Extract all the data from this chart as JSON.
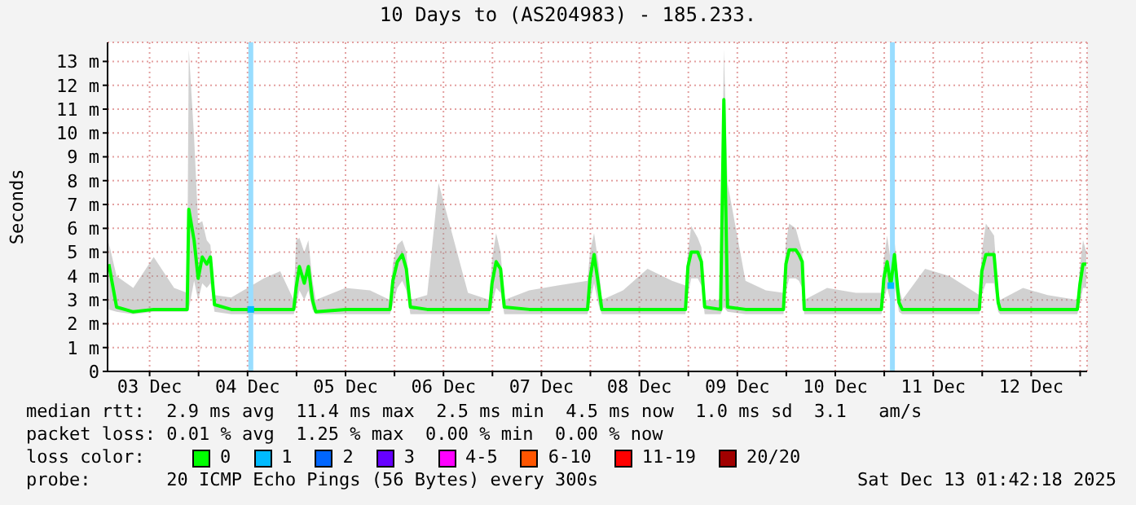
{
  "chart_data": {
    "type": "line",
    "title": "10 Days to (AS204983) - 185.233.",
    "ylabel": "Seconds",
    "legend_title": "loss color:",
    "legend": "bottom",
    "grid": true,
    "xlim": [
      "2025-12-03T01:42",
      "2025-12-13T01:42"
    ],
    "xticks": [
      {
        "value": "2025-12-03T12:00",
        "label": "03 Dec"
      },
      {
        "value": "2025-12-04T00:00",
        "label": null
      },
      {
        "value": "2025-12-04T12:00",
        "label": "04 Dec"
      },
      {
        "value": "2025-12-05T00:00",
        "label": null
      },
      {
        "value": "2025-12-05T12:00",
        "label": "05 Dec"
      },
      {
        "value": "2025-12-06T00:00",
        "label": null
      },
      {
        "value": "2025-12-06T12:00",
        "label": "06 Dec"
      },
      {
        "value": "2025-12-07T00:00",
        "label": null
      },
      {
        "value": "2025-12-07T12:00",
        "label": "07 Dec"
      },
      {
        "value": "2025-12-08T00:00",
        "label": null
      },
      {
        "value": "2025-12-08T12:00",
        "label": "08 Dec"
      },
      {
        "value": "2025-12-09T00:00",
        "label": null
      },
      {
        "value": "2025-12-09T12:00",
        "label": "09 Dec"
      },
      {
        "value": "2025-12-10T00:00",
        "label": null
      },
      {
        "value": "2025-12-10T12:00",
        "label": "10 Dec"
      },
      {
        "value": "2025-12-11T00:00",
        "label": null
      },
      {
        "value": "2025-12-11T12:00",
        "label": "11 Dec"
      },
      {
        "value": "2025-12-12T00:00",
        "label": null
      },
      {
        "value": "2025-12-12T12:00",
        "label": "12 Dec"
      },
      {
        "value": "2025-12-13T00:00",
        "label": null
      }
    ],
    "ylim": [
      0,
      13.8
    ],
    "yticks": [
      0,
      {
        "value": 1,
        "label": "1 m"
      },
      {
        "value": 2,
        "label": "2 m"
      },
      {
        "value": 3,
        "label": "3 m"
      },
      {
        "value": 4,
        "label": "4 m"
      },
      {
        "value": 5,
        "label": "5 m"
      },
      {
        "value": 6,
        "label": "6 m"
      },
      {
        "value": 7,
        "label": "7 m"
      },
      {
        "value": 8,
        "label": "8 m"
      },
      {
        "value": 9,
        "label": "9 m"
      },
      {
        "value": 10,
        "label": "10 m"
      },
      {
        "value": 11,
        "label": "11 m"
      },
      {
        "value": 12,
        "label": "12 m"
      },
      {
        "value": 13,
        "label": "13 m"
      }
    ],
    "ref_lines": [
      {
        "axis": "x",
        "value": "2025-12-04T12:48",
        "label": null,
        "color": "#99ddff"
      },
      {
        "axis": "x",
        "value": "2025-12-11T02:00",
        "label": null,
        "color": "#99ddff"
      }
    ],
    "series": [
      {
        "name": "0",
        "color": "#00ff00",
        "x": [
          "2025-12-03T02:00",
          "2025-12-03T03:54",
          "2025-12-03T08:00",
          "2025-12-03T13:00",
          "2025-12-03T18:00",
          "2025-12-03T21:12",
          "2025-12-03T21:36",
          "2025-12-03T22:54",
          "2025-12-03T23:54",
          "2025-12-04T00:54",
          "2025-12-04T02:00",
          "2025-12-04T02:54",
          "2025-12-04T03:54",
          "2025-12-04T08:00",
          "2025-12-04T16:00",
          "2025-12-04T20:00",
          "2025-12-04T23:18",
          "2025-12-04T23:54",
          "2025-12-05T00:42",
          "2025-12-05T01:54",
          "2025-12-05T02:54",
          "2025-12-05T03:54",
          "2025-12-05T04:42",
          "2025-12-05T12:00",
          "2025-12-05T18:00",
          "2025-12-05T22:54",
          "2025-12-05T23:36",
          "2025-12-06T00:42",
          "2025-12-06T01:54",
          "2025-12-06T02:54",
          "2025-12-06T03:54",
          "2025-12-06T08:00",
          "2025-12-06T10:48",
          "2025-12-06T18:00",
          "2025-12-06T23:18",
          "2025-12-06T23:54",
          "2025-12-07T00:54",
          "2025-12-07T02:00",
          "2025-12-07T02:54",
          "2025-12-07T09:00",
          "2025-12-07T16:00",
          "2025-12-07T23:18",
          "2025-12-07T23:54",
          "2025-12-08T00:54",
          "2025-12-08T02:00",
          "2025-12-08T02:48",
          "2025-12-08T08:00",
          "2025-12-08T14:00",
          "2025-12-08T20:00",
          "2025-12-08T23:18",
          "2025-12-08T23:54",
          "2025-12-09T00:42",
          "2025-12-09T02:18",
          "2025-12-09T03:12",
          "2025-12-09T04:00",
          "2025-12-09T07:54",
          "2025-12-09T08:42",
          "2025-12-09T09:36",
          "2025-12-09T14:00",
          "2025-12-09T19:00",
          "2025-12-09T23:18",
          "2025-12-09T23:54",
          "2025-12-10T00:42",
          "2025-12-10T02:18",
          "2025-12-10T03:06",
          "2025-12-10T03:54",
          "2025-12-10T04:24",
          "2025-12-10T10:00",
          "2025-12-10T17:00",
          "2025-12-10T23:18",
          "2025-12-10T23:54",
          "2025-12-11T00:42",
          "2025-12-11T01:36",
          "2025-12-11T02:30",
          "2025-12-11T03:36",
          "2025-12-11T04:24",
          "2025-12-11T10:00",
          "2025-12-11T16:00",
          "2025-12-11T23:18",
          "2025-12-11T23:54",
          "2025-12-12T00:54",
          "2025-12-12T02:54",
          "2025-12-12T03:54",
          "2025-12-12T04:24",
          "2025-12-12T10:00",
          "2025-12-12T16:00",
          "2025-12-12T23:18",
          "2025-12-12T23:54",
          "2025-12-13T00:42",
          "2025-12-13T01:30"
        ],
        "values": [
          4.5,
          2.7,
          2.5,
          2.6,
          2.6,
          2.6,
          6.8,
          5.5,
          3.9,
          4.8,
          4.5,
          4.8,
          2.8,
          2.6,
          2.6,
          2.6,
          2.6,
          3.5,
          4.4,
          3.7,
          4.4,
          3,
          2.5,
          2.6,
          2.6,
          2.6,
          3.8,
          4.6,
          4.9,
          4.3,
          2.7,
          2.6,
          2.6,
          2.6,
          2.6,
          3.7,
          4.6,
          4.3,
          2.7,
          2.6,
          2.6,
          2.6,
          3.9,
          4.9,
          3.6,
          2.6,
          2.6,
          2.6,
          2.6,
          2.6,
          4.4,
          5,
          5,
          4.6,
          2.7,
          2.6,
          11.4,
          2.7,
          2.6,
          2.6,
          2.6,
          4.5,
          5.1,
          5.1,
          4.9,
          4.6,
          2.6,
          2.6,
          2.6,
          2.6,
          3.9,
          4.6,
          3.6,
          4.9,
          2.9,
          2.6,
          2.6,
          2.6,
          2.6,
          4.2,
          4.9,
          4.9,
          2.9,
          2.6,
          2.6,
          2.6,
          2.6,
          3.6,
          4.5,
          4.5
        ],
        "lower": [
          2.6,
          2.5,
          2.4,
          2.5,
          2.5,
          2.5,
          2.6,
          3.8,
          3,
          3.7,
          3.5,
          3.7,
          2.5,
          2.4,
          2.4,
          2.4,
          2.4,
          2.7,
          3.4,
          3,
          3.4,
          2.6,
          2.4,
          2.4,
          2.4,
          2.4,
          2.8,
          3.5,
          3.8,
          3.4,
          2.4,
          2.4,
          2.4,
          2.4,
          2.4,
          2.8,
          3.5,
          3.3,
          2.4,
          2.4,
          2.4,
          2.4,
          2.9,
          3.7,
          2.8,
          2.4,
          2.4,
          2.4,
          2.4,
          2.4,
          3.2,
          3.9,
          3.9,
          3.6,
          2.4,
          2.4,
          2.7,
          2.5,
          2.4,
          2.4,
          2.4,
          3.3,
          3.9,
          3.9,
          3.8,
          3.5,
          2.4,
          2.4,
          2.4,
          2.4,
          3,
          3.5,
          2.9,
          3.6,
          2.5,
          2.4,
          2.4,
          2.4,
          2.4,
          3.2,
          3.7,
          3.7,
          2.5,
          2.4,
          2.4,
          2.4,
          2.4,
          2.8,
          3.5,
          3.5
        ],
        "upper": [
          5.4,
          4,
          3.5,
          4.8,
          3.5,
          3.3,
          13.5,
          9.8,
          6.2,
          6.3,
          5.5,
          5.3,
          3.2,
          3.1,
          3.9,
          4.2,
          3,
          5.5,
          5.6,
          5,
          5.5,
          3.8,
          3,
          3.5,
          3.4,
          3,
          4.5,
          5.3,
          5.5,
          5,
          3,
          3.2,
          7.9,
          3.3,
          3,
          4.7,
          5.8,
          5,
          3,
          3.4,
          3.6,
          3.8,
          5,
          5.8,
          4.5,
          3,
          3.4,
          4.3,
          3.8,
          3.6,
          5,
          6.1,
          5.6,
          5.2,
          3,
          3,
          13.5,
          7.9,
          3.8,
          3.4,
          3.3,
          5.4,
          6.2,
          6,
          5.5,
          5,
          3,
          3.5,
          3.3,
          3.3,
          4.7,
          5.7,
          4.6,
          5.5,
          3.5,
          3,
          4.3,
          4,
          3.2,
          5,
          6.2,
          5.7,
          3.3,
          3,
          3.5,
          3.2,
          3,
          4.3,
          5.5,
          5
        ]
      },
      {
        "name": "1",
        "color": "#00bbff",
        "type": "scatter",
        "marker": "square",
        "x": [
          "2025-12-04T12:48",
          "2025-12-11T01:36"
        ],
        "values": [
          2.6,
          3.6
        ]
      },
      {
        "name": "2",
        "color": "#0066ff",
        "type": "scatter"
      },
      {
        "name": "3",
        "color": "#6600ff",
        "type": "scatter"
      },
      {
        "name": "4-5",
        "color": "#ff00ff",
        "type": "scatter"
      },
      {
        "name": "6-10",
        "color": "#ff5500",
        "type": "scatter"
      },
      {
        "name": "11-19",
        "color": "#ff0000",
        "type": "scatter"
      },
      {
        "name": "20/20",
        "color": "#a10000",
        "type": "scatter"
      }
    ],
    "annotations": [
      "median rtt:  2.9 ms avg  11.4 ms max  2.5 ms min  4.5 ms now  1.0 ms sd  3.1   am/s",
      "packet loss: 0.01 % avg  1.25 % max  0.00 % min  0.00 % now",
      "probe:       20 ICMP Echo Pings (56 Bytes) every 300s",
      "Sat Dec 13 01:42:18 2025"
    ]
  }
}
